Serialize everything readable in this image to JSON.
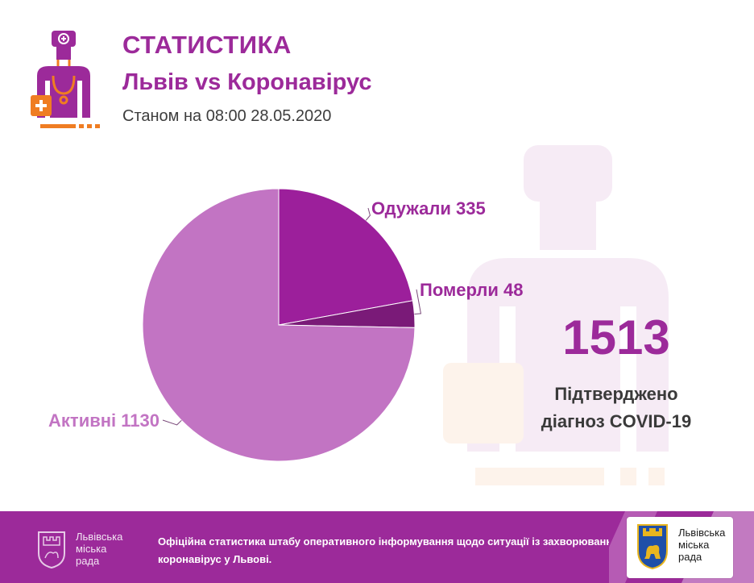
{
  "header": {
    "title": "СТАТИСТИКА",
    "subtitle": "Львів vs Коронавірус",
    "as_of": "Станом на 08:00 28.05.2020"
  },
  "colors": {
    "brand": "#9c2a9a",
    "accent_orange": "#ef7d22",
    "recovered": "#9c1f9b",
    "deaths": "#7a1a78",
    "active": "#c274c3"
  },
  "chart_data": {
    "type": "pie",
    "categories": [
      "Одужали",
      "Померли",
      "Активні"
    ],
    "values": [
      335,
      48,
      1130
    ],
    "labels": [
      "Одужали 335",
      "Померли 48",
      "Активні 1130"
    ],
    "colors": [
      "#9c1f9b",
      "#7a1a78",
      "#c274c3"
    ],
    "legend": "none"
  },
  "total": {
    "value": "1513",
    "caption_line1": "Підтверджено",
    "caption_line2": "діагноз COVID-19"
  },
  "footer": {
    "brand_lines": [
      "Львівська",
      "міська",
      "рада"
    ],
    "text_line1": "Офіційна статистика штабу оперативного інформування щодо ситуації із захворюванням",
    "text_line2": "коронавірус у Львові."
  },
  "badge": {
    "brand_lines": [
      "Львівська",
      "міська",
      "рада"
    ]
  }
}
